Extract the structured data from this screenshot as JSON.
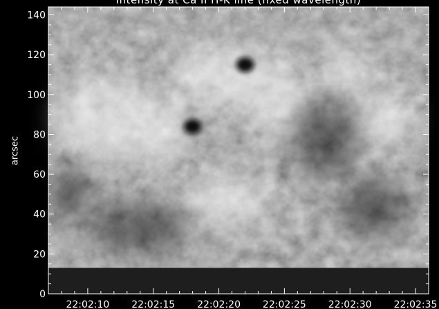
{
  "chart_data": {
    "type": "heatmap",
    "title": "Intensity at Ca II H-K line (fixed wavelength)",
    "xlabel": "",
    "ylabel": "arcsec",
    "x_ticks": [
      "22:02:10",
      "22:02:15",
      "22:02:20",
      "22:02:25",
      "22:02:30",
      "22:02:35"
    ],
    "y_ticks": [
      0,
      20,
      40,
      60,
      80,
      100,
      120,
      140
    ],
    "ylim": [
      0,
      144
    ],
    "xlim": [
      "22:02:07",
      "22:02:36"
    ],
    "colormap": "grayscale",
    "dark_band_below_arcsec": 13,
    "dark_features": [
      {
        "label": "pore",
        "x": "22:02:18",
        "y": 84
      },
      {
        "label": "pore",
        "x": "22:02:22",
        "y": 115
      }
    ],
    "colors": {
      "background": "#000000",
      "axes": "#ffffff",
      "band": "#1e1e1e"
    }
  }
}
